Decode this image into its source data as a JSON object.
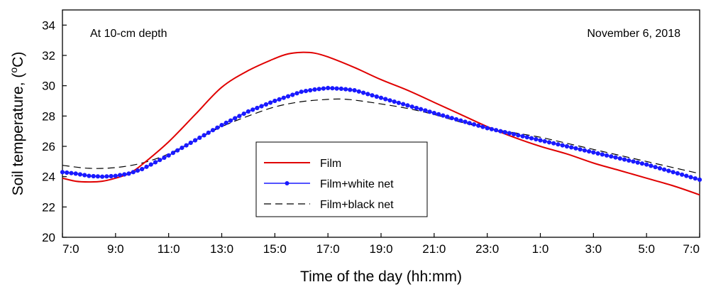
{
  "chart_data": {
    "type": "line",
    "xlabel": "Time of the day (hh:mm)",
    "ylabel": "Soil temperature, (°C)",
    "ylabel_parts": {
      "main": "Soil temperature, (",
      "sup": "o",
      "unit": "C)"
    },
    "annotation_left": "At 10-cm depth",
    "annotation_right": "November 6, 2018",
    "ylim": [
      20,
      35
    ],
    "yticks": [
      20,
      22,
      24,
      26,
      28,
      30,
      32,
      34
    ],
    "xlim": [
      7,
      31
    ],
    "xticks": [
      {
        "x": 7,
        "label": "7:0"
      },
      {
        "x": 9,
        "label": "9:0"
      },
      {
        "x": 11,
        "label": "11:0"
      },
      {
        "x": 13,
        "label": "13:0"
      },
      {
        "x": 15,
        "label": "15:0"
      },
      {
        "x": 17,
        "label": "17:0"
      },
      {
        "x": 19,
        "label": "19:0"
      },
      {
        "x": 21,
        "label": "21:0"
      },
      {
        "x": 23,
        "label": "23:0"
      },
      {
        "x": 25,
        "label": "1:0"
      },
      {
        "x": 27,
        "label": "3:0"
      },
      {
        "x": 29,
        "label": "5:0"
      },
      {
        "x": 31,
        "label": "7:0"
      }
    ],
    "grid": false,
    "legend_position": "bottom-center",
    "series": [
      {
        "name": "Film",
        "color": "#e00000",
        "style": "solid",
        "x": [
          7,
          7.5,
          8,
          8.5,
          9,
          9.5,
          10,
          11,
          12,
          13,
          14,
          15,
          15.5,
          16,
          16.5,
          17,
          18,
          19,
          20,
          21,
          22,
          23,
          24,
          25,
          26,
          27,
          28,
          29,
          30,
          31
        ],
        "y": [
          23.9,
          23.7,
          23.65,
          23.7,
          23.9,
          24.2,
          24.8,
          26.3,
          28.1,
          29.9,
          31.0,
          31.8,
          32.1,
          32.2,
          32.15,
          31.9,
          31.2,
          30.4,
          29.7,
          28.9,
          28.1,
          27.3,
          26.6,
          26.0,
          25.5,
          24.9,
          24.4,
          23.9,
          23.4,
          22.8
        ]
      },
      {
        "name": "Film+white net",
        "color": "#1a1aff",
        "style": "solid-markers",
        "x": [
          7,
          7.5,
          8,
          8.5,
          9,
          9.5,
          10,
          11,
          12,
          13,
          14,
          15,
          16,
          16.5,
          17,
          17.5,
          18,
          19,
          20,
          21,
          22,
          23,
          24,
          25,
          26,
          27,
          28,
          29,
          30,
          31
        ],
        "y": [
          24.3,
          24.2,
          24.05,
          24.0,
          24.05,
          24.2,
          24.5,
          25.4,
          26.4,
          27.4,
          28.3,
          29.0,
          29.6,
          29.75,
          29.85,
          29.8,
          29.7,
          29.2,
          28.7,
          28.2,
          27.7,
          27.2,
          26.8,
          26.4,
          26.0,
          25.6,
          25.2,
          24.8,
          24.3,
          23.8
        ]
      },
      {
        "name": "Film+black net",
        "color": "#000000",
        "style": "dashed",
        "x": [
          7,
          8,
          9,
          10,
          11,
          12,
          13,
          14,
          15,
          16,
          17,
          17.5,
          18,
          19,
          20,
          21,
          22,
          23,
          24,
          25,
          26,
          27,
          28,
          29,
          30,
          31
        ],
        "y": [
          24.75,
          24.55,
          24.6,
          24.9,
          25.5,
          26.4,
          27.3,
          28.0,
          28.6,
          28.95,
          29.1,
          29.12,
          29.05,
          28.8,
          28.5,
          28.1,
          27.6,
          27.2,
          26.9,
          26.6,
          26.2,
          25.8,
          25.4,
          25.0,
          24.6,
          24.2
        ]
      }
    ]
  }
}
